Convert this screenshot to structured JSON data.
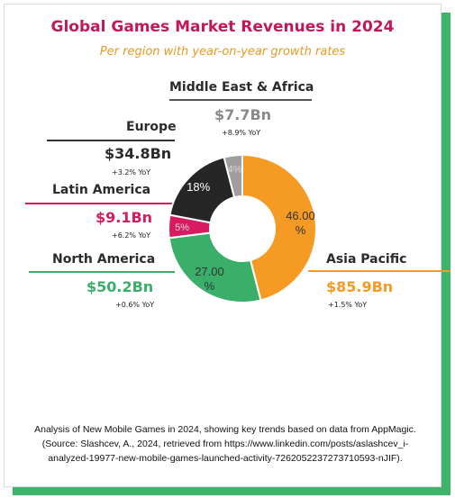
{
  "chart_data": {
    "type": "pie",
    "title": "Global Games Market Revenues in 2024",
    "subtitle": "Per region with year-on-year growth rates",
    "slices": [
      {
        "name": "Asia Pacific",
        "percent": 46.0,
        "label": "46.00 %",
        "revenue": "$85.9Bn",
        "yoy": "+1.5% YoY",
        "color": "#f59a23"
      },
      {
        "name": "North America",
        "percent": 27.0,
        "label": "27.00 %",
        "revenue": "$50.2Bn",
        "yoy": "+0.6% YoY",
        "color": "#3aaf6a"
      },
      {
        "name": "Latin America",
        "percent": 5.0,
        "label": "5%",
        "revenue": "$9.1Bn",
        "yoy": "+6.2% YoY",
        "color": "#d81b60"
      },
      {
        "name": "Europe",
        "percent": 18.0,
        "label": "18%",
        "revenue": "$34.8Bn",
        "yoy": "+3.2% YoY",
        "color": "#262626"
      },
      {
        "name": "Middle East & Africa",
        "percent": 4.0,
        "label": "4%",
        "revenue": "$7.7Bn",
        "yoy": "+8.9% YoY",
        "color": "#9e9e9e"
      }
    ]
  },
  "footnote": {
    "line1": "Analysis of New Mobile Games in 2024, showing key trends based on data from AppMagic.",
    "line2": "(Source: Slashcev, A., 2024, retrieved from https://www.linkedin.com/posts/aslashcev_i-",
    "line3": "analyzed-19977-new-mobile-games-launched-activity-7262052237273710593-nJIF)."
  },
  "colors": {
    "accent_green": "#3fb36a",
    "title": "#c2185b",
    "subtitle": "#e69a22",
    "region_line_dark": "#333333",
    "region_value_gray": "#8a8a8a"
  }
}
